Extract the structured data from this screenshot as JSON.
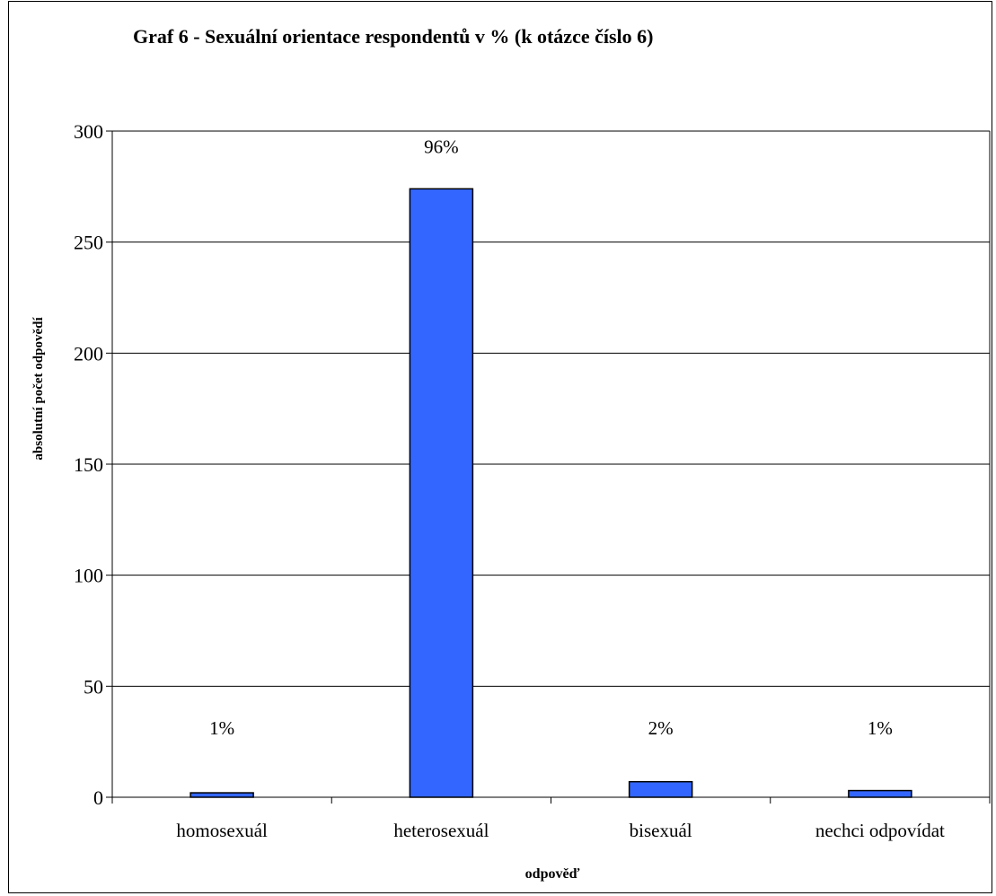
{
  "chart_data": {
    "type": "bar",
    "title": "Graf  6 - Sexuální orientace respondentů  v % (k otázce číslo 6)",
    "xlabel": "odpověď",
    "ylabel": "absolutní počet odpovědí",
    "categories": [
      "homosexuál",
      "heterosexuál",
      "bisexuál",
      "nechci odpovídat"
    ],
    "values": [
      2,
      274,
      7,
      3
    ],
    "data_labels": [
      "1%",
      "96%",
      "2%",
      "1%"
    ],
    "ylim": [
      0,
      300
    ],
    "yticks": [
      "0",
      "50",
      "100",
      "150",
      "200",
      "250",
      "300"
    ],
    "grid": true,
    "legend": "none",
    "bar_color": "#3366ff"
  }
}
